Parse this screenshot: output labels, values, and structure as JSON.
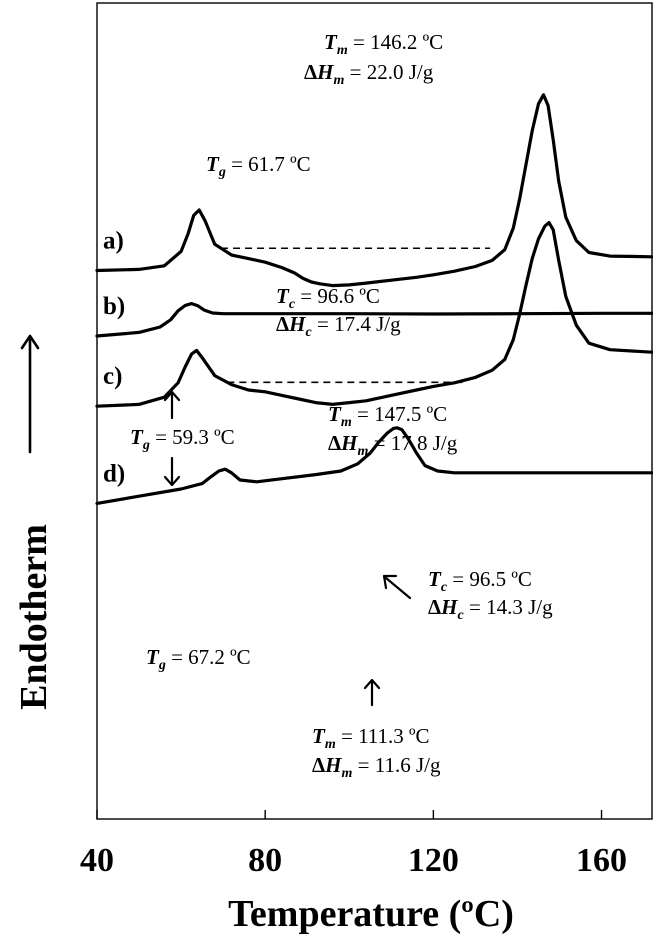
{
  "chart_data": {
    "type": "line",
    "xlabel": "Temperature (ºC)",
    "ylabel": "Endotherm",
    "x_ticks": [
      40,
      80,
      120,
      160
    ],
    "xlim": [
      40,
      172
    ],
    "grid": false,
    "series": [
      {
        "name": "a)",
        "x": [
          40,
          50,
          56,
          60,
          61.7,
          63,
          64.3,
          65.7,
          68,
          72,
          76,
          80,
          84,
          87,
          89,
          91,
          93,
          96,
          100,
          104,
          110,
          116,
          120,
          125,
          130,
          134,
          137,
          139,
          140.5,
          142,
          143.5,
          145,
          146.2,
          147.3,
          148.5,
          149.8,
          151.5,
          154,
          157,
          162,
          172
        ],
        "y": [
          8.2,
          8.5,
          9.5,
          13.5,
          18.5,
          23.5,
          25.0,
          22.0,
          15.5,
          12.5,
          11.5,
          10.5,
          9.0,
          7.5,
          6.0,
          5.0,
          4.5,
          4.0,
          4.2,
          4.7,
          5.5,
          6.3,
          7.0,
          8.0,
          9.3,
          11.0,
          14.0,
          20.0,
          28.0,
          37.5,
          47.0,
          54.5,
          57.0,
          54.0,
          44.5,
          33.0,
          23.0,
          16.5,
          13.2,
          12.2,
          12.0
        ]
      },
      {
        "name": "b)",
        "x": [
          40,
          50,
          55,
          57.5,
          59.3,
          61,
          62.5,
          64,
          65.5,
          67.5,
          70,
          80,
          100,
          120,
          140,
          160,
          172
        ],
        "y": [
          -10.0,
          -9.0,
          -7.5,
          -5.5,
          -3.0,
          -1.5,
          -1.0,
          -1.6,
          -2.8,
          -3.6,
          -3.8,
          -3.8,
          -3.8,
          -3.9,
          -3.8,
          -3.7,
          -3.7
        ]
      },
      {
        "name": "c)",
        "x": [
          40,
          50,
          56,
          59.3,
          61,
          62.5,
          63.7,
          65,
          68,
          72,
          76,
          80,
          84,
          88,
          92,
          96,
          100,
          104,
          108,
          112,
          116,
          120,
          125,
          130,
          134,
          137,
          139,
          140.5,
          142,
          143.5,
          145,
          146.5,
          147.5,
          148.5,
          149.8,
          151.5,
          154,
          157,
          162,
          172
        ],
        "y": [
          -29.5,
          -29.0,
          -27.0,
          -23.0,
          -18.5,
          -15.0,
          -14.0,
          -16.0,
          -21.0,
          -23.5,
          -25.0,
          -25.5,
          -26.5,
          -27.5,
          -28.5,
          -29.0,
          -28.5,
          -28.0,
          -27.0,
          -26.0,
          -25.0,
          -24.0,
          -23.0,
          -21.5,
          -19.5,
          -16.5,
          -11.0,
          -4.0,
          4.0,
          11.5,
          17.0,
          20.5,
          21.5,
          19.5,
          11.0,
          1.0,
          -7.0,
          -12.0,
          -13.8,
          -14.5
        ]
      },
      {
        "name": "d)",
        "x": [
          40,
          50,
          60,
          65,
          67.2,
          69,
          70.5,
          72,
          74,
          78,
          85,
          92,
          98,
          102,
          105,
          107,
          109,
          110.5,
          111.3,
          112.5,
          114,
          116,
          118,
          121,
          125,
          130,
          140,
          150,
          160,
          172
        ],
        "y": [
          -56.5,
          -54.5,
          -52.5,
          -51.0,
          -49.0,
          -47.5,
          -47.0,
          -48.0,
          -50.0,
          -50.5,
          -49.5,
          -48.5,
          -47.5,
          -45.5,
          -42.5,
          -39.5,
          -37.0,
          -35.7,
          -35.5,
          -36.0,
          -38.5,
          -42.5,
          -46.0,
          -47.5,
          -48.0,
          -48.0,
          -48.0,
          -48.0,
          -48.0,
          -48.0
        ]
      }
    ],
    "baselines": [
      {
        "curve": "a)",
        "x1": 69.5,
        "x2": 133.5
      },
      {
        "curve": "c)",
        "x1": 71,
        "x2": 127.5
      }
    ],
    "annotations": [
      {
        "label": "Tg",
        "value": "61.7 ºC",
        "curve": "a)"
      },
      {
        "label": "Tm",
        "value": "146.2 ºC",
        "curve": "a)"
      },
      {
        "label": "ΔHm",
        "value": "22.0 J/g",
        "curve": "a)"
      },
      {
        "label": "Tc",
        "value": "96.6 ºC",
        "curve": "a)"
      },
      {
        "label": "ΔHc",
        "value": "17.4 J/g",
        "curve": "a)"
      },
      {
        "label": "Tg",
        "value": "59.3 ºC",
        "curve": "b), c)"
      },
      {
        "label": "Tm",
        "value": "147.5 ºC",
        "curve": "c)"
      },
      {
        "label": "ΔHm",
        "value": "17.8 J/g",
        "curve": "c)"
      },
      {
        "label": "Tc",
        "value": "96.5 ºC",
        "curve": "c)"
      },
      {
        "label": "ΔHc",
        "value": "14.3 J/g",
        "curve": "c)"
      },
      {
        "label": "Tg",
        "value": "67.2 ºC",
        "curve": "d)"
      },
      {
        "label": "Tm",
        "value": "111.3 ºC",
        "curve": "d)"
      },
      {
        "label": "ΔHm",
        "value": "11.6 J/g",
        "curve": "d)"
      }
    ]
  }
}
